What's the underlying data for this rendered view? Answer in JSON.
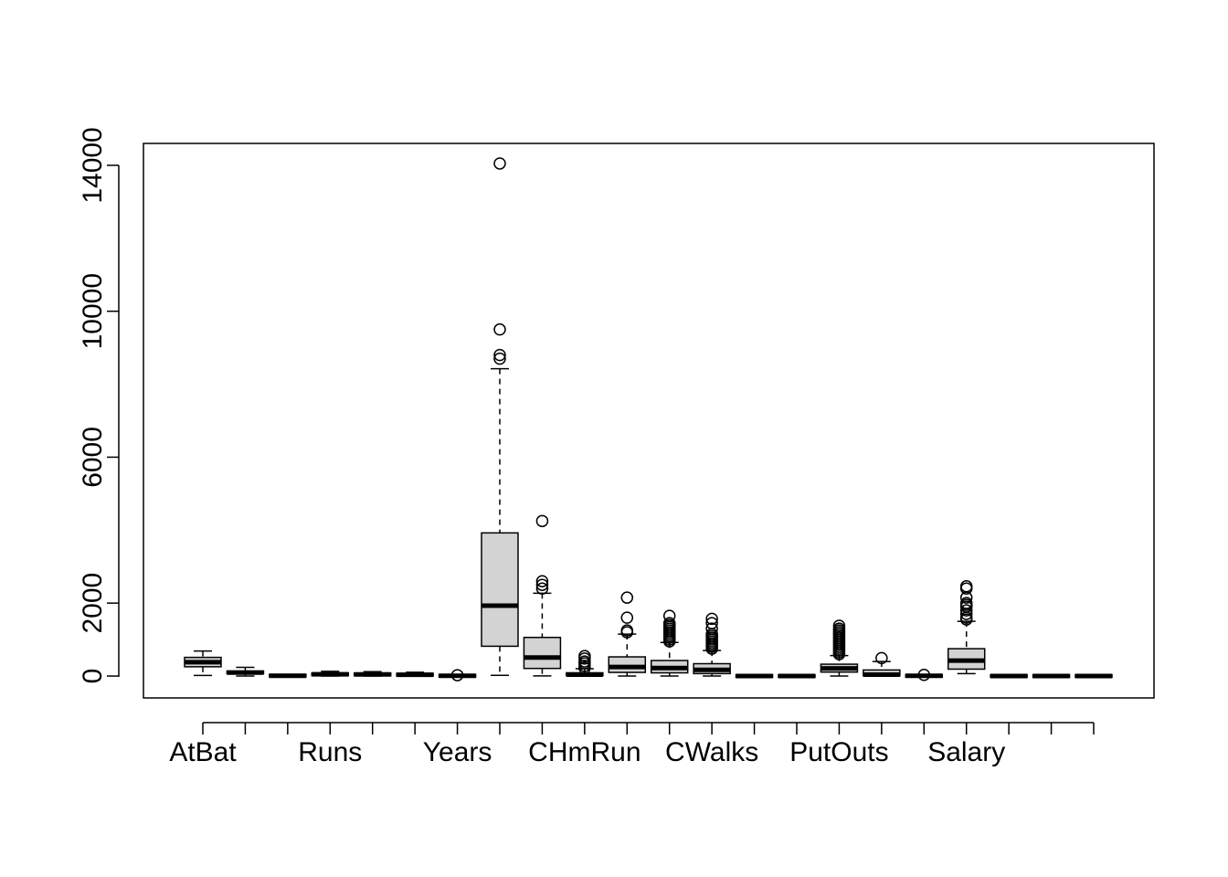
{
  "chart_data": {
    "type": "boxplot",
    "title": "",
    "xlabel": "",
    "ylabel": "",
    "ylim": [
      -600,
      14600
    ],
    "y_ticks": [
      0,
      2000,
      6000,
      10000,
      14000
    ],
    "y_tick_labels": [
      "0",
      "2000",
      "6000",
      "10000",
      "14000"
    ],
    "grid": false,
    "box_fill": "#d3d3d3",
    "categories": [
      "AtBat",
      "",
      "",
      "Runs",
      "",
      "",
      "",
      "Years",
      "",
      "",
      "CHmRun",
      "",
      "CWalks",
      "",
      "",
      "",
      "PutOuts",
      "",
      "",
      "",
      "Salary",
      ""
    ],
    "visible_x_labels": [
      {
        "index": 0,
        "label": "AtBat"
      },
      {
        "index": 3,
        "label": "Runs"
      },
      {
        "index": 6,
        "label": "Years"
      },
      {
        "index": 9,
        "label": "CHmRun"
      },
      {
        "index": 12,
        "label": "CWalks"
      },
      {
        "index": 15,
        "label": "PutOuts"
      },
      {
        "index": 18,
        "label": "Salary"
      }
    ],
    "boxes": [
      {
        "whisker_low": 16,
        "q1": 255,
        "median": 380,
        "q3": 512,
        "whisker_high": 687,
        "outliers": []
      },
      {
        "whisker_low": 1,
        "q1": 64,
        "median": 96,
        "q3": 137,
        "whisker_high": 238,
        "outliers": []
      },
      {
        "whisker_low": 0,
        "q1": 4,
        "median": 8,
        "q3": 16,
        "whisker_high": 40,
        "outliers": []
      },
      {
        "whisker_low": 0,
        "q1": 30,
        "median": 48,
        "q3": 69,
        "whisker_high": 130,
        "outliers": []
      },
      {
        "whisker_low": 0,
        "q1": 28,
        "median": 44,
        "q3": 64,
        "whisker_high": 121,
        "outliers": []
      },
      {
        "whisker_low": 0,
        "q1": 22,
        "median": 35,
        "q3": 53,
        "whisker_high": 105,
        "outliers": []
      },
      {
        "whisker_low": 1,
        "q1": 4,
        "median": 6,
        "q3": 11,
        "whisker_high": 20,
        "outliers": [
          24
        ]
      },
      {
        "whisker_low": 19,
        "q1": 817,
        "median": 1928,
        "q3": 3924,
        "whisker_high": 8424,
        "outliers": [
          8700,
          8800,
          9500,
          14050
        ]
      },
      {
        "whisker_low": 4,
        "q1": 209,
        "median": 508,
        "q3": 1059,
        "whisker_high": 2270,
        "outliers": [
          2400,
          2500,
          2600,
          4250
        ]
      },
      {
        "whisker_low": 0,
        "q1": 14,
        "median": 37,
        "q3": 90,
        "whisker_high": 200,
        "outliers": [
          220,
          280,
          350,
          400,
          480,
          548
        ]
      },
      {
        "whisker_low": 1,
        "q1": 100,
        "median": 247,
        "q3": 526,
        "whisker_high": 1150,
        "outliers": [
          1200,
          1250,
          1600,
          2150
        ]
      },
      {
        "whisker_low": 2,
        "q1": 88,
        "median": 220,
        "q3": 426,
        "whisker_high": 920,
        "outliers": [
          950,
          1000,
          1050,
          1100,
          1150,
          1200,
          1250,
          1300,
          1350,
          1400,
          1450,
          1650
        ]
      },
      {
        "whisker_low": 0,
        "q1": 67,
        "median": 170,
        "q3": 339,
        "whisker_high": 700,
        "outliers": [
          750,
          800,
          850,
          900,
          950,
          1000,
          1050,
          1100,
          1150,
          1300,
          1450,
          1570
        ]
      },
      {
        "whisker_low": 0,
        "q1": 0,
        "median": 0,
        "q3": 1,
        "whisker_high": 1,
        "outliers": []
      },
      {
        "whisker_low": 0,
        "q1": 0,
        "median": 0,
        "q3": 1,
        "whisker_high": 1,
        "outliers": []
      },
      {
        "whisker_low": 0,
        "q1": 109,
        "median": 212,
        "q3": 325,
        "whisker_high": 560,
        "outliers": [
          600,
          650,
          700,
          750,
          800,
          850,
          900,
          950,
          1000,
          1050,
          1100,
          1150,
          1200,
          1250,
          1300,
          1378
        ]
      },
      {
        "whisker_low": 0,
        "q1": 7,
        "median": 39,
        "q3": 166,
        "whisker_high": 400,
        "outliers": [
          492
        ]
      },
      {
        "whisker_low": 0,
        "q1": 3,
        "median": 6,
        "q3": 11,
        "whisker_high": 25,
        "outliers": [
          32
        ]
      },
      {
        "whisker_low": 68,
        "q1": 190,
        "median": 425,
        "q3": 750,
        "whisker_high": 1500,
        "outliers": [
          1550,
          1600,
          1700,
          1800,
          1900,
          1950,
          2000,
          2150,
          2400,
          2460
        ]
      },
      {
        "whisker_low": 0,
        "q1": 0,
        "median": 0,
        "q3": 1,
        "whisker_high": 1,
        "outliers": []
      },
      {
        "whisker_low": 0,
        "q1": 0,
        "median": 0,
        "q3": 1,
        "whisker_high": 1,
        "outliers": []
      },
      {
        "whisker_low": 0,
        "q1": 0,
        "median": 0,
        "q3": 1,
        "whisker_high": 1,
        "outliers": []
      }
    ]
  }
}
